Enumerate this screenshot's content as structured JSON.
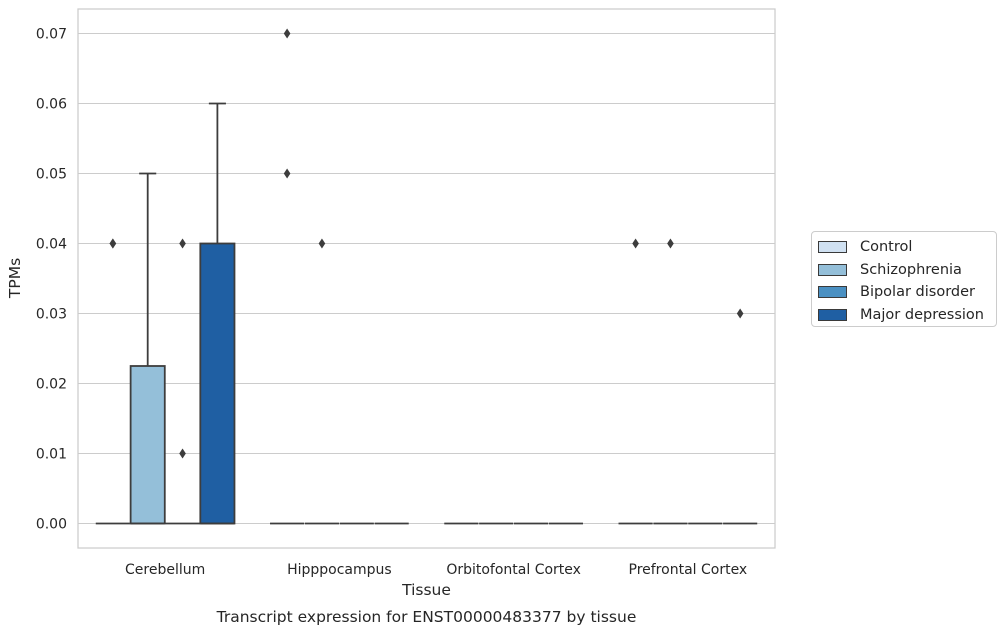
{
  "chart_data": {
    "type": "box",
    "title": "Transcript expression for ENST00000483377 by tissue",
    "xlabel": "Tissue",
    "ylabel": "TPMs",
    "ylim": [
      -0.0035,
      0.0735
    ],
    "yticks": [
      "0.00",
      "0.01",
      "0.02",
      "0.03",
      "0.04",
      "0.05",
      "0.06",
      "0.07"
    ],
    "grid": true,
    "legend_position": "right",
    "categories": [
      "Cerebellum",
      "Hipppocampus",
      "Orbitofontal Cortex",
      "Prefrontal Cortex"
    ],
    "series": [
      {
        "name": "Control",
        "color": "#d0e1f2",
        "boxes": [
          {
            "q1": 0,
            "median": 0,
            "q3": 0,
            "whisker_low": 0,
            "whisker_high": 0,
            "outliers": [
              0.04,
              0.04
            ]
          },
          {
            "q1": 0,
            "median": 0,
            "q3": 0,
            "whisker_low": 0,
            "whisker_high": 0,
            "outliers": [
              0.07,
              0.05
            ]
          },
          {
            "q1": 0,
            "median": 0,
            "q3": 0,
            "whisker_low": 0,
            "whisker_high": 0,
            "outliers": []
          },
          {
            "q1": 0,
            "median": 0,
            "q3": 0,
            "whisker_low": 0,
            "whisker_high": 0,
            "outliers": [
              0.04
            ]
          }
        ]
      },
      {
        "name": "Schizophrenia",
        "color": "#94bfd9",
        "boxes": [
          {
            "q1": 0,
            "median": 0,
            "q3": 0.0225,
            "whisker_low": 0,
            "whisker_high": 0.05,
            "outliers": []
          },
          {
            "q1": 0,
            "median": 0,
            "q3": 0,
            "whisker_low": 0,
            "whisker_high": 0,
            "outliers": [
              0.04
            ]
          },
          {
            "q1": 0,
            "median": 0,
            "q3": 0,
            "whisker_low": 0,
            "whisker_high": 0,
            "outliers": []
          },
          {
            "q1": 0,
            "median": 0,
            "q3": 0,
            "whisker_low": 0,
            "whisker_high": 0,
            "outliers": [
              0.04
            ]
          }
        ]
      },
      {
        "name": "Bipolar disorder",
        "color": "#4a90c2",
        "boxes": [
          {
            "q1": 0,
            "median": 0,
            "q3": 0,
            "whisker_low": 0,
            "whisker_high": 0,
            "outliers": [
              0.04,
              0.01
            ]
          },
          {
            "q1": 0,
            "median": 0,
            "q3": 0,
            "whisker_low": 0,
            "whisker_high": 0,
            "outliers": []
          },
          {
            "q1": 0,
            "median": 0,
            "q3": 0,
            "whisker_low": 0,
            "whisker_high": 0,
            "outliers": []
          },
          {
            "q1": 0,
            "median": 0,
            "q3": 0,
            "whisker_low": 0,
            "whisker_high": 0,
            "outliers": []
          }
        ]
      },
      {
        "name": "Major depression",
        "color": "#1f5fa3",
        "boxes": [
          {
            "q1": 0,
            "median": 0,
            "q3": 0.04,
            "whisker_low": 0,
            "whisker_high": 0.06,
            "outliers": []
          },
          {
            "q1": 0,
            "median": 0,
            "q3": 0,
            "whisker_low": 0,
            "whisker_high": 0,
            "outliers": []
          },
          {
            "q1": 0,
            "median": 0,
            "q3": 0,
            "whisker_low": 0,
            "whisker_high": 0,
            "outliers": []
          },
          {
            "q1": 0,
            "median": 0,
            "q3": 0,
            "whisker_low": 0,
            "whisker_high": 0,
            "outliers": [
              0.03
            ]
          }
        ]
      }
    ]
  }
}
